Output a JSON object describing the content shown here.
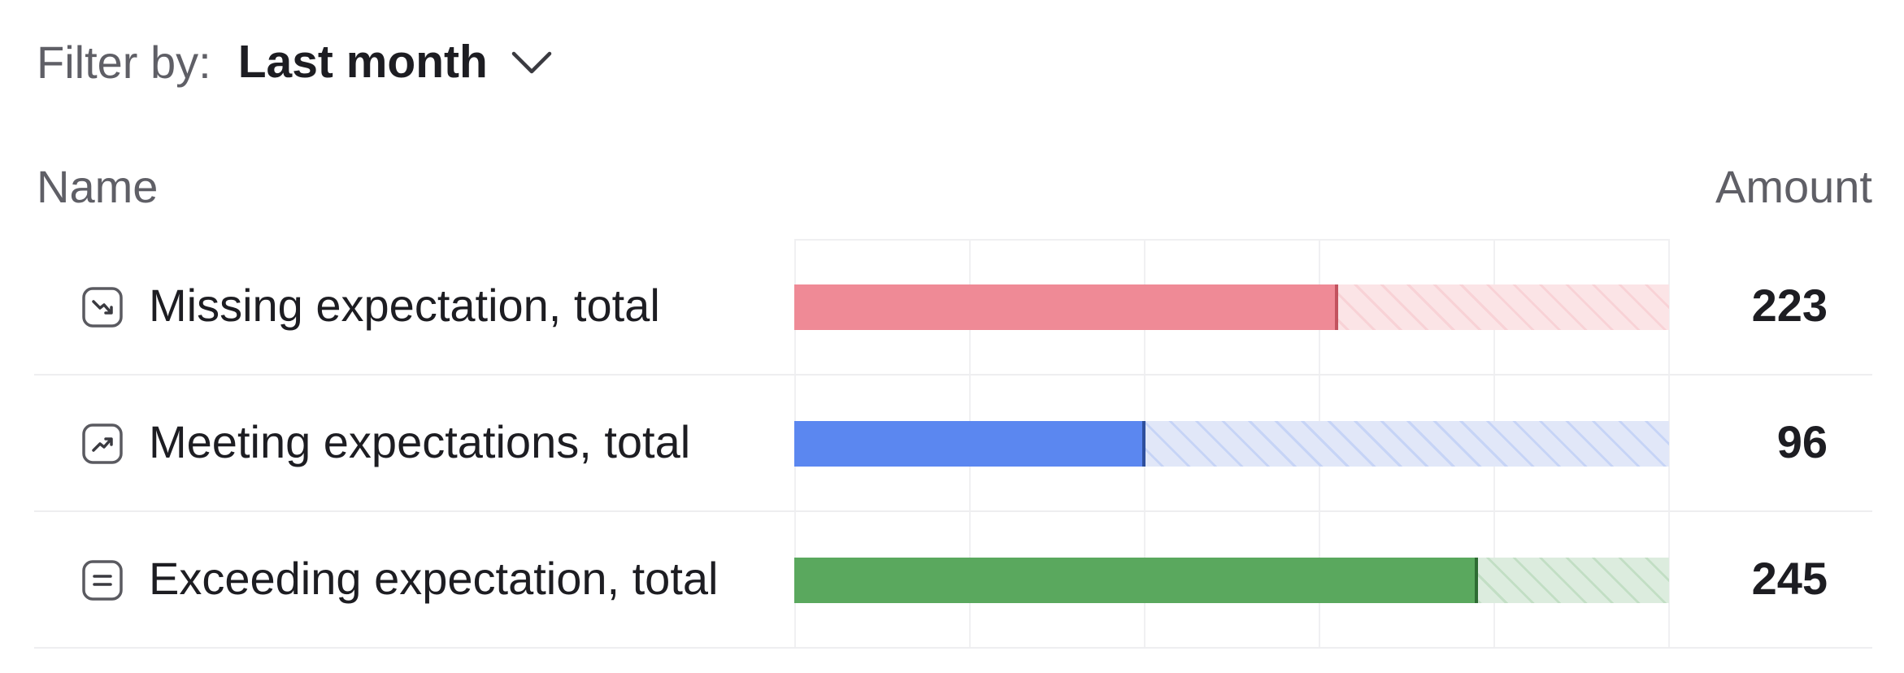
{
  "filter": {
    "label": "Filter by:",
    "value": "Last month"
  },
  "columns": {
    "name": "Name",
    "amount": "Amount"
  },
  "rows": [
    {
      "label": "Missing expectation, total",
      "amount": "223",
      "icon": "trend-down-icon",
      "fill_fraction": 0.62,
      "color": "#ef8a96",
      "track_color": "#fbe4e6",
      "marker_color": "#c2535f"
    },
    {
      "label": "Meeting expectations, total",
      "amount": "96",
      "icon": "trend-up-icon",
      "fill_fraction": 0.4,
      "color": "#5b87f0",
      "track_color": "#e1e7f8",
      "marker_color": "#2e4f9c"
    },
    {
      "label": "Exceeding expectation, total",
      "amount": "245",
      "icon": "equals-icon",
      "fill_fraction": 0.78,
      "color": "#5aa85e",
      "track_color": "#dcecde",
      "marker_color": "#2e6b33"
    }
  ]
}
